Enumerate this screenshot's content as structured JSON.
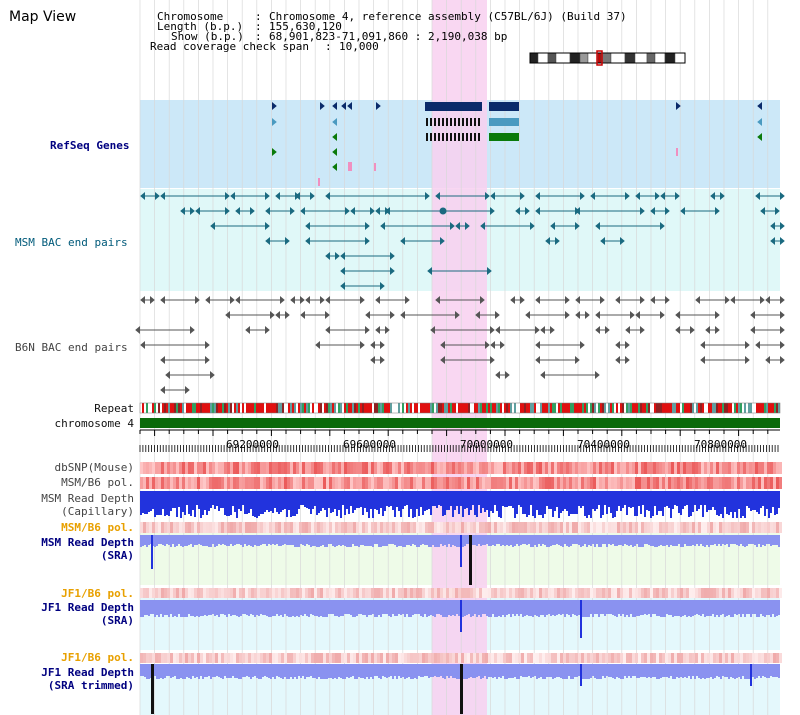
{
  "page": {
    "title": "Map View"
  },
  "header": {
    "chromosome_label": "Chromosome",
    "chromosome_value": "Chromosome 4, reference assembly (C57BL/6J) (Build 37)",
    "length_label": "Length (b.p.)",
    "length_value": "155,630,120",
    "show_label": "Show (b.p.)",
    "show_value": "68,901,823-71,091,860 : 2,190,038 bp",
    "coverage_label": "Read coverage check span",
    "coverage_value": "10,000"
  },
  "tracks": {
    "refseq": "RefSeq Genes",
    "msm_bac": "MSM BAC end pairs",
    "b6n_bac": "B6N BAC end pairs",
    "repeat": "Repeat",
    "chromosome": "chromosome 4",
    "dbsnp": "dbSNP(Mouse)",
    "msm_b6_pol_1": "MSM/B6 pol.",
    "msm_depth_cap_1": "MSM Read Depth",
    "msm_depth_cap_2": "(Capillary)",
    "msm_b6_pol_2": "MSM/B6 pol.",
    "msm_depth_sra_1": "MSM Read Depth",
    "msm_depth_sra_2": "(SRA)",
    "jf1_b6_pol_1": "JF1/B6 pol.",
    "jf1_depth_sra_1": "JF1 Read Depth",
    "jf1_depth_sra_2": "(SRA)",
    "jf1_b6_pol_2": "JF1/B6 pol.",
    "jf1_depth_trim_1": "JF1 Read Depth",
    "jf1_depth_trim_2": "(SRA trimmed)"
  },
  "axis": {
    "ticks": [
      "69200000",
      "69600000",
      "70000000",
      "70400000",
      "70800000"
    ]
  },
  "colors": {
    "highlight": "#f8d0f0",
    "refseq_bg": "#cce8f8",
    "msm_bac_bg": "#e0f8f8",
    "b6n_bac_bg": "#ffffff",
    "teal": "#1a6a80",
    "chromosome_bar": "#0a6a0a",
    "navy": "#0a1a5a",
    "depth_blue": "#2233dd",
    "light_blue": "#8a92f0"
  }
}
